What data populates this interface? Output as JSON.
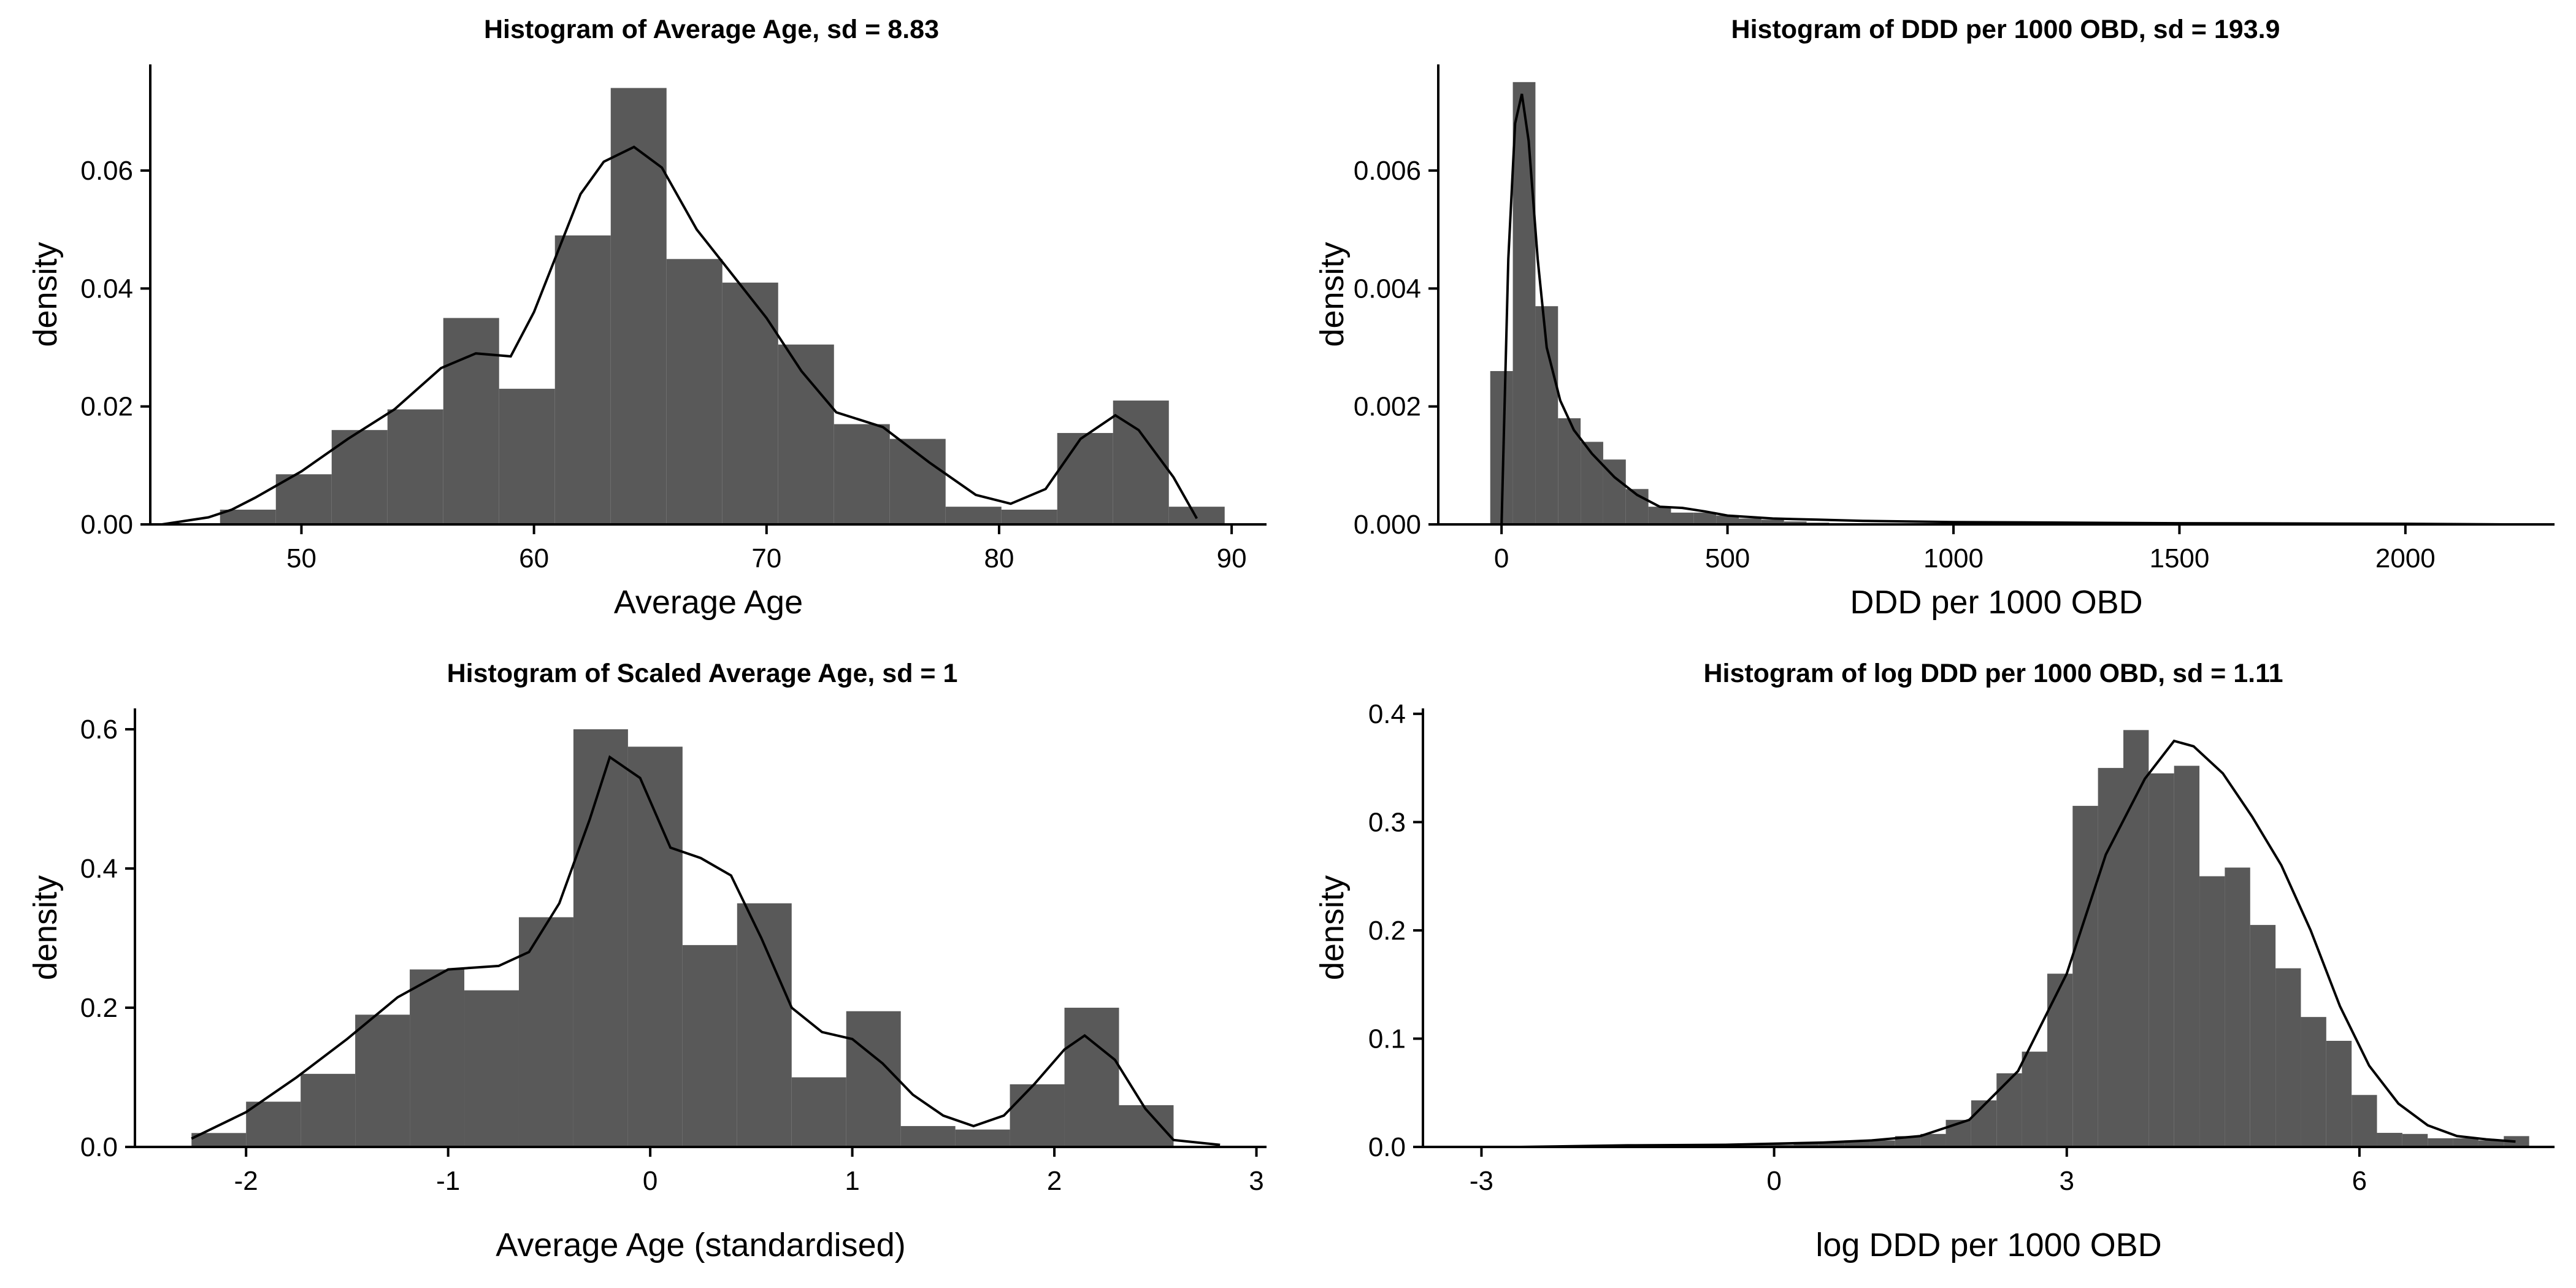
{
  "colors": {
    "bar": "#595959",
    "density": "#000000",
    "axis": "#000000",
    "background": "#ffffff"
  },
  "chart_data": [
    {
      "type": "histogram",
      "title": "Histogram of Average Age, sd =  8.83",
      "xlabel": "Average Age",
      "ylabel": "density",
      "xlim": [
        43.5,
        91.5
      ],
      "ylim": [
        0,
        0.078
      ],
      "xticks": [
        50,
        60,
        70,
        80,
        90
      ],
      "xtick_labels": [
        "50",
        "60",
        "70",
        "80",
        "90"
      ],
      "yticks": [
        0,
        0.02,
        0.04,
        0.06
      ],
      "ytick_labels": [
        "0.00",
        "0.02",
        "0.04",
        "0.06"
      ],
      "grid": false,
      "bins": {
        "edges": [
          46.5,
          48.9,
          51.3,
          53.7,
          56.1,
          58.5,
          60.9,
          63.3,
          65.7,
          68.1,
          70.5,
          72.9,
          75.3,
          77.7,
          80.1,
          82.5,
          84.9,
          87.3,
          89.7
        ],
        "values": [
          0.0025,
          0.0085,
          0.016,
          0.0195,
          0.035,
          0.023,
          0.049,
          0.074,
          0.045,
          0.041,
          0.0305,
          0.017,
          0.0145,
          0.003,
          0.0025,
          0.0155,
          0.021,
          0.003
        ]
      },
      "density": {
        "x": [
          44,
          46,
          47,
          48,
          50,
          52,
          54,
          56,
          57.5,
          59,
          60,
          61,
          62,
          63,
          64.3,
          65.5,
          67,
          68.5,
          70,
          71.5,
          73,
          75,
          77,
          79,
          80.5,
          82,
          83.5,
          85,
          86,
          87.5,
          88.5
        ],
        "y": [
          0,
          0.0012,
          0.0025,
          0.0045,
          0.009,
          0.0145,
          0.0195,
          0.0265,
          0.029,
          0.0285,
          0.036,
          0.046,
          0.056,
          0.0615,
          0.064,
          0.0605,
          0.05,
          0.0425,
          0.035,
          0.026,
          0.019,
          0.0165,
          0.0105,
          0.005,
          0.0035,
          0.006,
          0.0145,
          0.0185,
          0.016,
          0.008,
          0.001
        ]
      }
    },
    {
      "type": "histogram",
      "title": "Histogram of DDD per 1000 OBD, sd =  193.9",
      "xlabel": "DDD per 1000 OBD",
      "ylabel": "density",
      "xlim": [
        -140,
        2330
      ],
      "ylim": [
        0,
        0.0078
      ],
      "xticks": [
        0,
        500,
        1000,
        1500,
        2000
      ],
      "xtick_labels": [
        "0",
        "500",
        "1000",
        "1500",
        "2000"
      ],
      "yticks": [
        0,
        0.002,
        0.004,
        0.006
      ],
      "ytick_labels": [
        "0.000",
        "0.002",
        "0.004",
        "0.006"
      ],
      "grid": false,
      "bins": {
        "edges": [
          -25,
          25,
          75,
          125,
          175,
          225,
          275,
          325,
          375,
          425,
          475,
          525,
          575,
          625,
          675,
          725
        ],
        "values": [
          0.0026,
          0.0075,
          0.0037,
          0.0018,
          0.0014,
          0.0011,
          0.0006,
          0.0003,
          0.0002,
          0.0002,
          0.00015,
          0.0001,
          8e-05,
          5e-05,
          3e-05
        ]
      },
      "density": {
        "x": [
          0,
          15,
          30,
          45,
          60,
          80,
          100,
          130,
          160,
          200,
          250,
          300,
          350,
          400,
          450,
          500,
          600,
          700,
          800,
          1000,
          1500,
          2000,
          2220
        ],
        "y": [
          0,
          0.0045,
          0.0068,
          0.0073,
          0.0065,
          0.0045,
          0.003,
          0.0021,
          0.0016,
          0.0012,
          0.0008,
          0.0005,
          0.0003,
          0.00028,
          0.00022,
          0.00015,
          0.0001,
          8e-05,
          6e-05,
          4e-05,
          2e-05,
          1e-05,
          0
        ]
      }
    },
    {
      "type": "histogram",
      "title": "Histogram of Scaled Average Age, sd =  1",
      "xlabel": "Average Age (standardised)",
      "ylabel": "density",
      "xlim": [
        -2.55,
        3.05
      ],
      "ylim": [
        0,
        0.63
      ],
      "xticks": [
        -2,
        -1,
        0,
        1,
        2,
        3
      ],
      "xtick_labels": [
        "-2",
        "-1",
        "0",
        "1",
        "2",
        "3"
      ],
      "yticks": [
        0,
        0.2,
        0.4,
        0.6
      ],
      "ytick_labels": [
        "0.0",
        "0.2",
        "0.4",
        "0.6"
      ],
      "grid": false,
      "bins": {
        "edges": [
          -2.27,
          -2.0,
          -1.73,
          -1.46,
          -1.19,
          -0.92,
          -0.65,
          -0.38,
          -0.11,
          0.16,
          0.43,
          0.7,
          0.97,
          1.24,
          1.51,
          1.78,
          2.05,
          2.32,
          2.59
        ],
        "values": [
          0.02,
          0.065,
          0.105,
          0.19,
          0.255,
          0.225,
          0.33,
          0.6,
          0.575,
          0.29,
          0.35,
          0.1,
          0.195,
          0.03,
          0.025,
          0.09,
          0.2,
          0.06
        ]
      },
      "density": {
        "x": [
          -2.27,
          -2.0,
          -1.75,
          -1.5,
          -1.25,
          -1.0,
          -0.75,
          -0.6,
          -0.45,
          -0.3,
          -0.2,
          -0.05,
          0.1,
          0.25,
          0.4,
          0.55,
          0.7,
          0.85,
          1.0,
          1.15,
          1.3,
          1.45,
          1.6,
          1.75,
          1.9,
          2.05,
          2.15,
          2.3,
          2.45,
          2.59,
          2.82
        ],
        "y": [
          0.012,
          0.05,
          0.1,
          0.155,
          0.215,
          0.255,
          0.26,
          0.28,
          0.35,
          0.47,
          0.56,
          0.53,
          0.43,
          0.415,
          0.39,
          0.3,
          0.2,
          0.165,
          0.155,
          0.12,
          0.075,
          0.045,
          0.03,
          0.045,
          0.09,
          0.14,
          0.16,
          0.125,
          0.055,
          0.01,
          0.003
        ]
      }
    },
    {
      "type": "histogram",
      "title": "Histogram of log DDD per 1000 OBD, sd =  1.11",
      "xlabel": "log DDD per 1000 OBD",
      "ylabel": "density",
      "xlim": [
        -3.6,
        8.0
      ],
      "ylim": [
        0,
        0.405
      ],
      "xticks": [
        -3,
        0,
        3,
        6
      ],
      "xtick_labels": [
        "-3",
        "0",
        "3",
        "6"
      ],
      "yticks": [
        0,
        0.1,
        0.2,
        0.3,
        0.4
      ],
      "ytick_labels": [
        "0.0",
        "0.1",
        "0.2",
        "0.3",
        "0.4"
      ],
      "grid": false,
      "bins": {
        "edges": [
          -1.1,
          -0.84,
          -0.58,
          -0.32,
          -0.06,
          0.2,
          0.46,
          0.72,
          0.98,
          1.24,
          1.5,
          1.76,
          2.02,
          2.28,
          2.54,
          2.8,
          3.06,
          3.32,
          3.58,
          3.84,
          4.1,
          4.36,
          4.62,
          4.88,
          5.14,
          5.4,
          5.66,
          5.92,
          6.18,
          6.44,
          6.7,
          6.96,
          7.22,
          7.48,
          7.74
        ],
        "values": [
          0.001,
          0.001,
          0.0015,
          0.002,
          0.002,
          0.004,
          0.005,
          0.006,
          0.006,
          0.01,
          0.012,
          0.025,
          0.043,
          0.068,
          0.088,
          0.16,
          0.315,
          0.35,
          0.385,
          0.345,
          0.352,
          0.25,
          0.258,
          0.205,
          0.165,
          0.12,
          0.098,
          0.048,
          0.013,
          0.012,
          0.008,
          0.008,
          0.006,
          0.01
        ]
      },
      "density": {
        "x": [
          -2.6,
          -1.5,
          -0.5,
          0.5,
          1.0,
          1.5,
          2.0,
          2.5,
          3.0,
          3.4,
          3.8,
          4.1,
          4.3,
          4.6,
          4.9,
          5.2,
          5.5,
          5.8,
          6.1,
          6.4,
          6.7,
          7.0,
          7.3,
          7.6
        ],
        "y": [
          0,
          0.0015,
          0.002,
          0.004,
          0.006,
          0.01,
          0.025,
          0.07,
          0.16,
          0.27,
          0.34,
          0.375,
          0.37,
          0.345,
          0.305,
          0.26,
          0.2,
          0.13,
          0.075,
          0.04,
          0.02,
          0.01,
          0.007,
          0.005
        ]
      }
    }
  ]
}
